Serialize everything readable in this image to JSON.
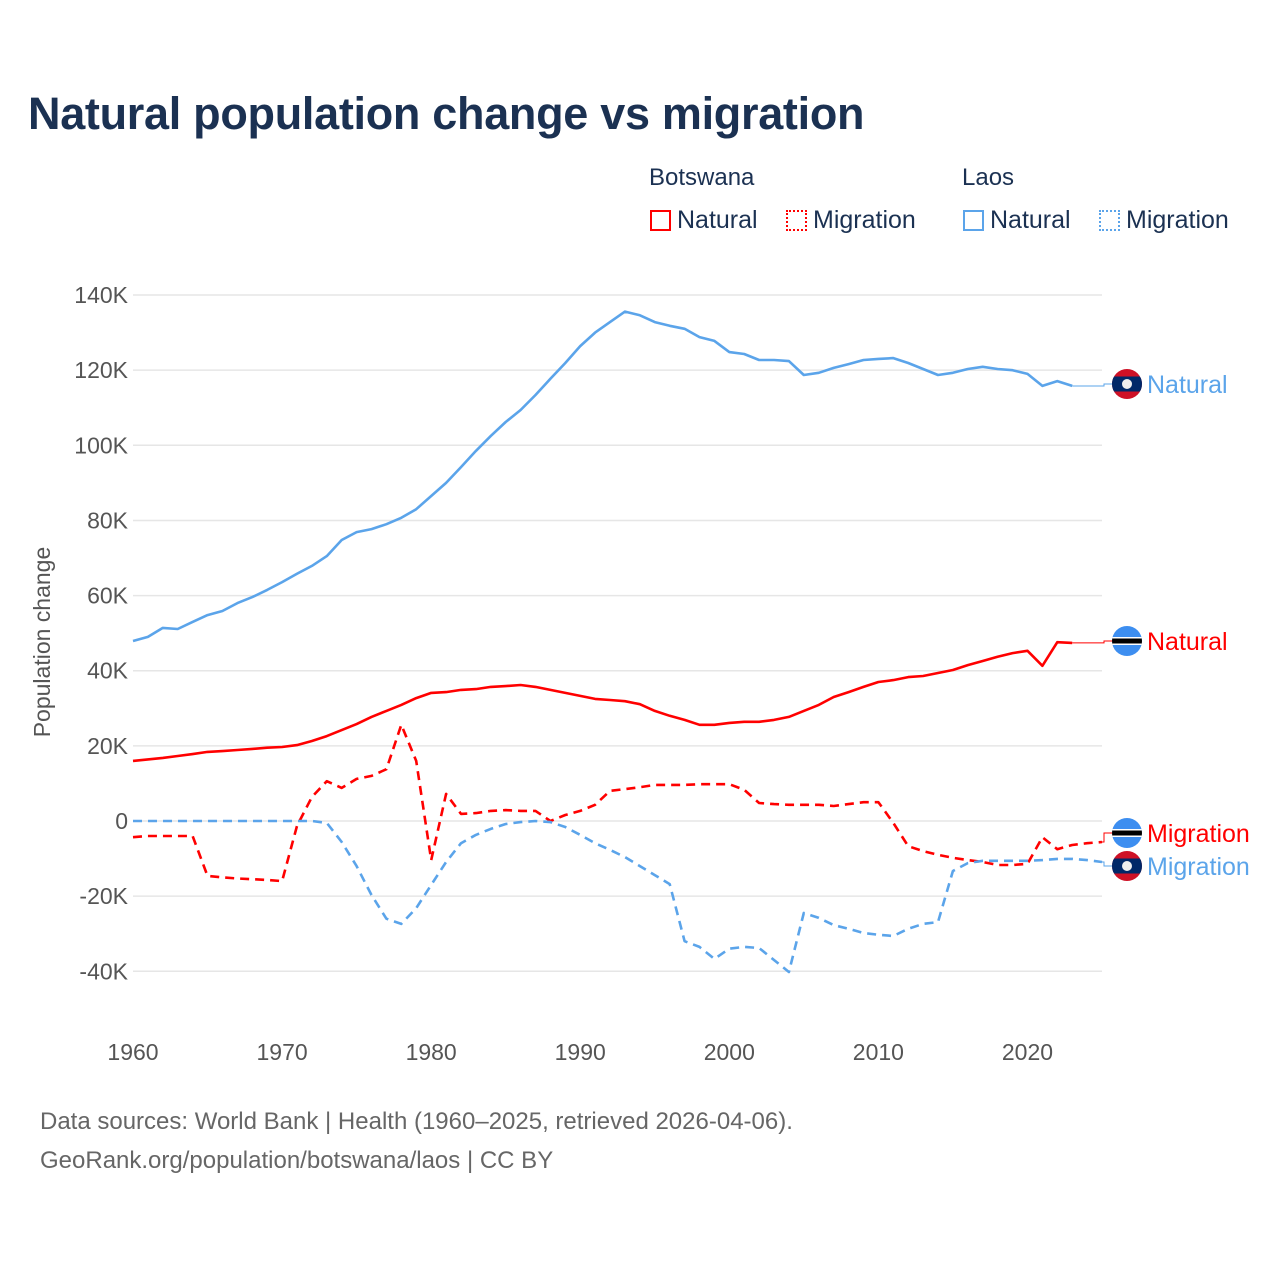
{
  "title": "Natural population change vs migration",
  "legend": {
    "groups": [
      {
        "name": "Botswana",
        "items": [
          {
            "label": "Natural",
            "style": "solid"
          },
          {
            "label": "Migration",
            "style": "dotted"
          }
        ],
        "color": "#ff0000"
      },
      {
        "name": "Laos",
        "items": [
          {
            "label": "Natural",
            "style": "solid"
          },
          {
            "label": "Migration",
            "style": "dotted"
          }
        ],
        "color": "#5ba4ea"
      }
    ]
  },
  "footer": {
    "line1": "Data sources: World Bank | Health (1960–2025, retrieved 2026-04-06).",
    "line2": "GeoRank.org/population/botswana/laos | CC BY"
  },
  "chart_data": {
    "type": "line",
    "title": "Natural population change vs migration",
    "xlabel": "",
    "ylabel": "Population change",
    "xlim": [
      1960,
      2025
    ],
    "ylim": [
      -50000,
      140000
    ],
    "x_ticks": [
      1960,
      1970,
      1980,
      1990,
      2000,
      2010,
      2020
    ],
    "y_ticks": [
      {
        "value": -40000,
        "label": "-40K"
      },
      {
        "value": -20000,
        "label": "-20K"
      },
      {
        "value": 0,
        "label": "0"
      },
      {
        "value": 20000,
        "label": "20K"
      },
      {
        "value": 40000,
        "label": "40K"
      },
      {
        "value": 60000,
        "label": "60K"
      },
      {
        "value": 80000,
        "label": "80K"
      },
      {
        "value": 100000,
        "label": "100K"
      },
      {
        "value": 120000,
        "label": "120K"
      },
      {
        "value": 140000,
        "label": "140K"
      }
    ],
    "grid": true,
    "legend_position": "top-right",
    "series": [
      {
        "name": "Laos Natural",
        "country": "Laos",
        "end_label": "Natural",
        "color": "#5ba4ea",
        "dash": false,
        "x_start": 1960,
        "values": [
          47900,
          49000,
          51400,
          51100,
          53000,
          54800,
          55900,
          58000,
          59600,
          61500,
          63600,
          65800,
          67900,
          70500,
          74800,
          76900,
          77700,
          79000,
          80700,
          83000,
          86500,
          90000,
          94200,
          98500,
          102500,
          106200,
          109400,
          113400,
          117700,
          121900,
          126400,
          130000,
          132800,
          135600,
          134600,
          132800,
          131800,
          131000,
          128800,
          127800,
          124800,
          124300,
          122700,
          122700,
          122400,
          118700,
          119300,
          120600,
          121600,
          122700,
          123000,
          123200,
          121900,
          120300,
          118700,
          119300,
          120300,
          120900,
          120300,
          120000,
          119000,
          115800,
          117100,
          115800
        ]
      },
      {
        "name": "Botswana Natural",
        "country": "Botswana",
        "end_label": "Natural",
        "color": "#ff0000",
        "dash": false,
        "x_start": 1960,
        "values": [
          16000,
          16400,
          16800,
          17300,
          17800,
          18400,
          18600,
          18900,
          19200,
          19500,
          19700,
          20200,
          21300,
          22600,
          24200,
          25800,
          27700,
          29300,
          30900,
          32700,
          34100,
          34300,
          34900,
          35100,
          35700,
          35900,
          36200,
          35700,
          34900,
          34100,
          33300,
          32500,
          32200,
          31900,
          31100,
          29300,
          28000,
          26900,
          25600,
          25600,
          26100,
          26400,
          26400,
          26900,
          27700,
          29300,
          30900,
          33000,
          34300,
          35700,
          37000,
          37500,
          38300,
          38600,
          39400,
          40200,
          41500,
          42600,
          43700,
          44700,
          45300,
          41300,
          47600,
          47400
        ]
      },
      {
        "name": "Botswana Migration",
        "country": "Botswana",
        "end_label": "Migration",
        "color": "#ff0000",
        "dash": true,
        "x_start": 1960,
        "values": [
          -4300,
          -4000,
          -4000,
          -4000,
          -4000,
          -14600,
          -15000,
          -15300,
          -15500,
          -15700,
          -16000,
          -1300,
          6400,
          10600,
          8800,
          11200,
          12000,
          13800,
          25600,
          16000,
          -10400,
          7200,
          1900,
          2100,
          2700,
          2900,
          2700,
          2700,
          0,
          1600,
          2700,
          4300,
          8000,
          8500,
          9000,
          9600,
          9600,
          9600,
          9800,
          9800,
          9800,
          8300,
          4800,
          4500,
          4300,
          4300,
          4300,
          4000,
          4500,
          5000,
          5000,
          -500,
          -6700,
          -8000,
          -9000,
          -9800,
          -10400,
          -10900,
          -11700,
          -11700,
          -11400,
          -4300,
          -7500,
          -6400,
          -5900,
          -5600
        ]
      },
      {
        "name": "Laos Migration",
        "country": "Laos",
        "end_label": "Migration",
        "color": "#5ba4ea",
        "dash": true,
        "x_start": 1960,
        "values": [
          0,
          0,
          0,
          0,
          0,
          0,
          0,
          0,
          0,
          0,
          0,
          0,
          0,
          -500,
          -5600,
          -12000,
          -19700,
          -26000,
          -27400,
          -23200,
          -17000,
          -10900,
          -5900,
          -3700,
          -2100,
          -800,
          -300,
          0,
          -300,
          -1600,
          -3700,
          -5900,
          -7700,
          -9600,
          -12000,
          -14400,
          -16800,
          -32000,
          -33500,
          -36700,
          -34000,
          -33500,
          -33800,
          -37000,
          -40200,
          -24500,
          -25800,
          -27700,
          -28700,
          -29800,
          -30300,
          -30600,
          -28700,
          -27400,
          -26900,
          -13300,
          -11200,
          -10600,
          -10600,
          -10600,
          -10600,
          -10400,
          -10100,
          -10100,
          -10400,
          -10900
        ]
      }
    ]
  }
}
